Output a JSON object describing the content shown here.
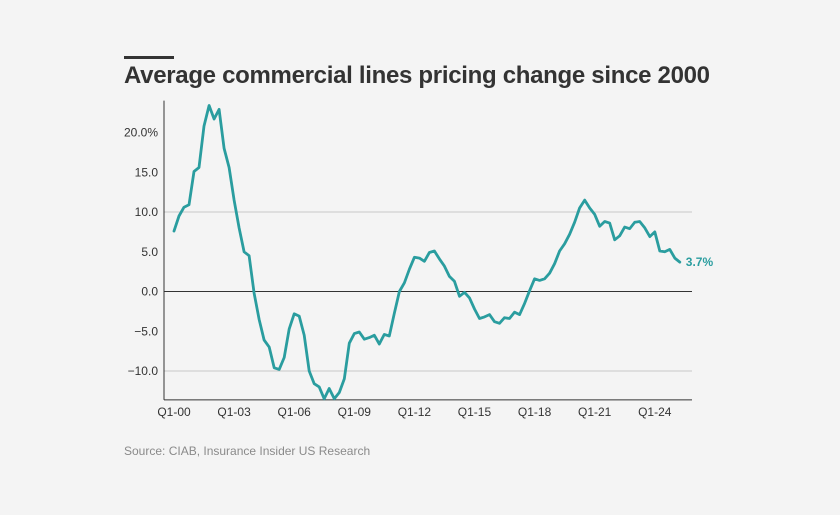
{
  "chart_data": {
    "type": "line",
    "title": "Average commercial lines pricing change since 2000",
    "source": "Source: CIAB, Insurance Insider US Research",
    "xlabel": "",
    "ylabel": "",
    "x_ticks": [
      {
        "label": "Q1-00",
        "q": 0
      },
      {
        "label": "Q1-03",
        "q": 12
      },
      {
        "label": "Q1-06",
        "q": 24
      },
      {
        "label": "Q1-09",
        "q": 36
      },
      {
        "label": "Q1-12",
        "q": 48
      },
      {
        "label": "Q1-15",
        "q": 60
      },
      {
        "label": "Q1-18",
        "q": 72
      },
      {
        "label": "Q1-21",
        "q": 84
      },
      {
        "label": "Q1-24",
        "q": 96
      }
    ],
    "y_ticks": [
      {
        "label": "20.0%",
        "value": 20
      },
      {
        "label": "15.0",
        "value": 15
      },
      {
        "label": "10.0",
        "value": 10
      },
      {
        "label": "5.0",
        "value": 5
      },
      {
        "label": "0.0",
        "value": 0
      },
      {
        "label": "−5.0",
        "value": -5
      },
      {
        "label": "−10.0",
        "value": -10
      }
    ],
    "ylim": [
      -13.5,
      23.5
    ],
    "xlim_quarters": [
      0,
      104
    ],
    "gridlines_at": [
      10,
      0,
      -10
    ],
    "line_color": "#2a9d9f",
    "series": [
      {
        "name": "Average commercial lines pricing change",
        "start": "Q1-00",
        "values": [
          7.6,
          9.5,
          10.6,
          10.9,
          15.1,
          15.6,
          20.8,
          23.4,
          21.7,
          22.9,
          18.0,
          15.6,
          11.5,
          8.0,
          5.0,
          4.5,
          -0.2,
          -3.5,
          -6.1,
          -7.0,
          -9.6,
          -9.8,
          -8.3,
          -4.7,
          -2.8,
          -3.1,
          -5.5,
          -10.0,
          -11.6,
          -12.0,
          -13.5,
          -12.2,
          -13.5,
          -12.7,
          -11.0,
          -6.5,
          -5.3,
          -5.1,
          -6.0,
          -5.8,
          -5.5,
          -6.6,
          -5.4,
          -5.6,
          -2.7,
          0.0,
          1.1,
          2.8,
          4.3,
          4.2,
          3.8,
          4.9,
          5.1,
          4.1,
          3.2,
          1.9,
          1.3,
          -0.6,
          -0.1,
          -0.8,
          -2.2,
          -3.4,
          -3.2,
          -2.9,
          -3.8,
          -4.0,
          -3.3,
          -3.4,
          -2.6,
          -2.9,
          -1.5,
          0.1,
          1.6,
          1.4,
          1.6,
          2.3,
          3.5,
          5.1,
          6.0,
          7.2,
          8.7,
          10.5,
          11.5,
          10.5,
          9.7,
          8.2,
          8.8,
          8.6,
          6.5,
          7.0,
          8.1,
          7.9,
          8.7,
          8.8,
          8.0,
          6.9,
          7.5,
          5.1,
          5.0,
          5.3,
          4.2,
          3.7
        ]
      }
    ],
    "end_label": "3.7%"
  }
}
